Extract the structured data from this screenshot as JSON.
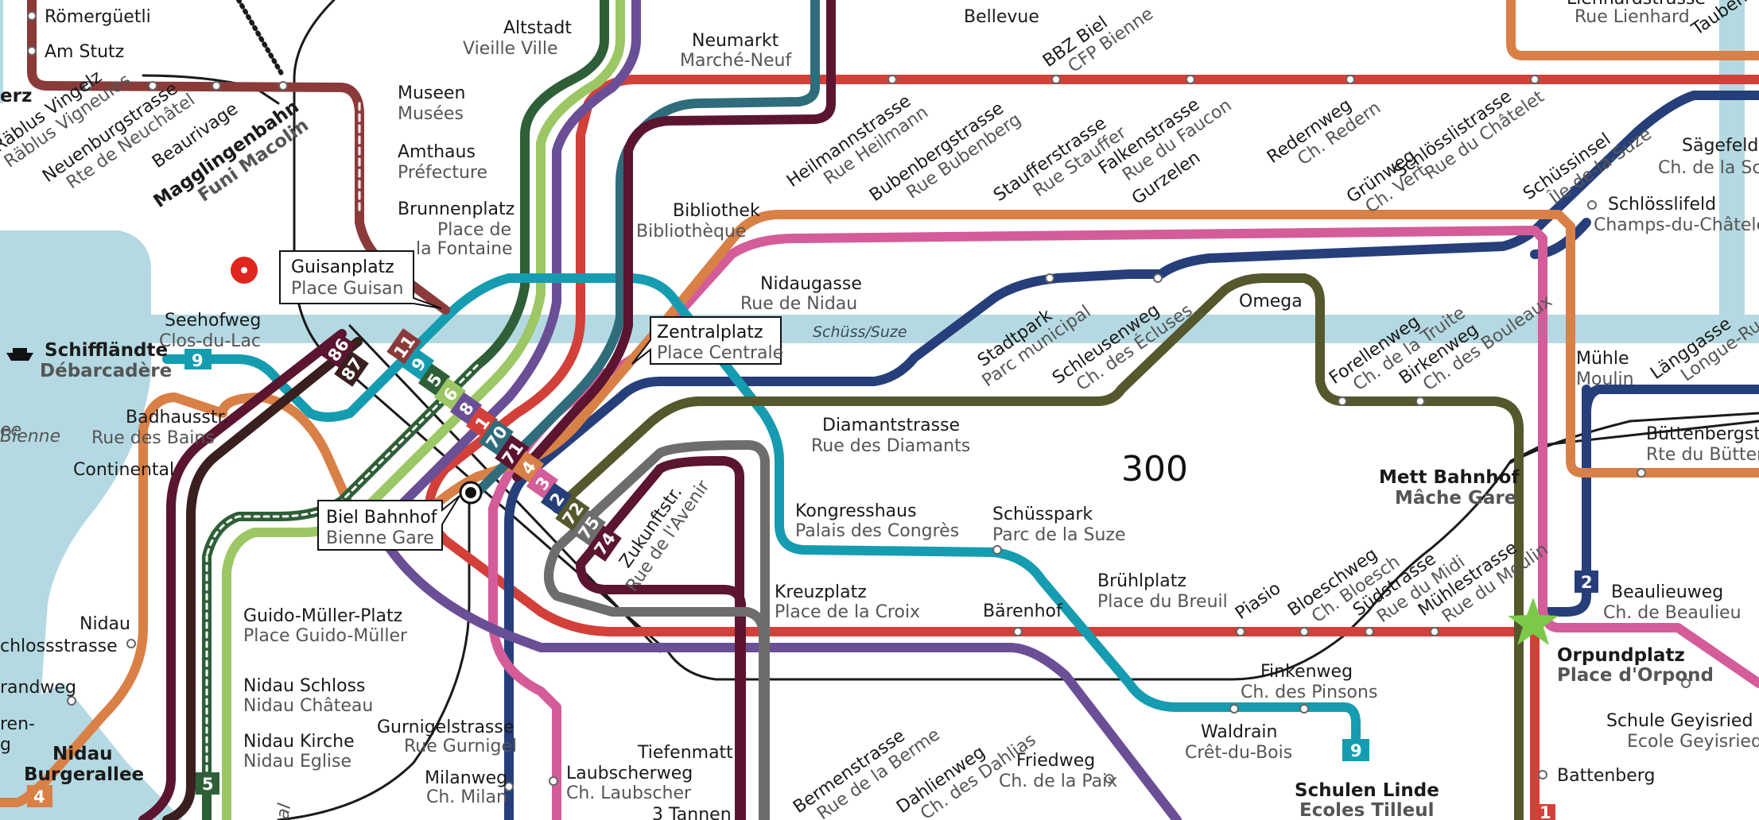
{
  "map": {
    "zone_number": "300",
    "river": "Schüss/Suze",
    "colors": {
      "water": "#b4d9e2",
      "line1": "#d3403a",
      "line2": "#263f7a",
      "line3": "#d45c99",
      "line4": "#d98046",
      "line5": "#2e5f37",
      "line6": "#9cc764",
      "line7": "#6a4f97",
      "line8": "#6a4f97",
      "line9": "#169cb0",
      "line11": "#8b3a3a",
      "line70": "#2f6c7c",
      "line71": "#5b1530",
      "line72": "#55572c",
      "line74": "#5b1530",
      "line75": "#6d6d6d",
      "line86": "#5b1530",
      "line87": "#3a1f1f",
      "funi": "#8b3a3a",
      "rail": "#1a1a1a",
      "star": "#7cc94a"
    },
    "line_badges": [
      "86",
      "87",
      "11",
      "9",
      "5",
      "6",
      "8",
      "1",
      "70",
      "71",
      "4",
      "3",
      "2",
      "72",
      "75",
      "74",
      "9",
      "2",
      "5",
      "4",
      "1"
    ],
    "callouts": {
      "guisanplatz": {
        "de": "Guisanplatz",
        "fr": "Place Guisan"
      },
      "zentralplatz": {
        "de": "Zentralplatz",
        "fr": "Place Centrale"
      },
      "biel_bahnhof": {
        "de": "Biel Bahnhof",
        "fr": "Bienne Gare"
      }
    },
    "stops": {
      "roemerguetli": "Römergüetli",
      "am_stutz": "Am Stutz",
      "erz": "erz",
      "museen": {
        "de": "Museen",
        "fr": "Musées"
      },
      "amthaus": {
        "de": "Amthaus",
        "fr": "Préfecture"
      },
      "brunnenplatz": {
        "de": "Brunnenplatz",
        "fr1": "Place de",
        "fr2": "la Fontaine"
      },
      "altstadt": {
        "de": "Altstadt",
        "fr": "Vieille Ville"
      },
      "neumarkt": {
        "de": "Neumarkt",
        "fr": "Marché-Neuf"
      },
      "bellevue": "Bellevue",
      "bbz_biel": {
        "de": "BBZ Biel",
        "fr": "CFP Bienne"
      },
      "lienhardstrasse": {
        "de": "Lienhardstrasse",
        "fr": "Rue Lienhard"
      },
      "taubenloch": "Taubenl",
      "raeblus": {
        "de": "Räblus Vingelz",
        "fr": "Räblus Vigneules"
      },
      "neuenburgstrasse": {
        "de": "Neuenburgstrasse",
        "fr": "Rte de Neuchâtel"
      },
      "beaurivage": "Beaurivage",
      "magglingenbahn": {
        "de": "Magglingenbahn",
        "fr": "Funi Macolin"
      },
      "heilmannstrasse": {
        "de": "Heilmannstrasse",
        "fr": "Rue Heilmann"
      },
      "bubenbergstrasse": {
        "de": "Bubenbergstrasse",
        "fr": "Rue Bubenberg"
      },
      "staufferstrasse": {
        "de": "Staufferstrasse",
        "fr": "Rue Stauffer"
      },
      "falkenstrasse": {
        "de": "Falkenstrasse",
        "fr": "Rue du Faucon"
      },
      "gurzelen": "Gurzelen",
      "redernweg": {
        "de": "Redernweg",
        "fr": "Ch. Redern"
      },
      "gruenweg": {
        "de": "Grünweg",
        "fr": "Ch. Vert"
      },
      "schloesslistrasse": {
        "de": "Schlösslistrasse",
        "fr": "Rue du Châtelet"
      },
      "schuessinsel": {
        "de": "Schüssinsel",
        "fr": "Île-de-la-Suze"
      },
      "saegefeld": {
        "de": "Sägefeldw",
        "fr": "Ch. de la Sci"
      },
      "schloesslifeld": {
        "de": "Schlösslifeld",
        "fr": "Champs-du-Châtelet"
      },
      "bibliothek": {
        "de": "Bibliothek",
        "fr": "Bibliothèque"
      },
      "nidaugasse": {
        "de": "Nidaugasse",
        "fr": "Rue de Nidau"
      },
      "seehofweg": {
        "de": "Seehofweg",
        "fr": "Clos-du-Lac"
      },
      "schifflaendte": {
        "de": "Schiffländte",
        "fr": "Débarcadère"
      },
      "stadtpark": {
        "de": "Stadtpark",
        "fr": "Parc municipal"
      },
      "schleusenweg": {
        "de": "Schleusenweg",
        "fr": "Ch. des Écluses"
      },
      "omega": "Omega",
      "forellenweg": {
        "de": "Forellenweg",
        "fr": "Ch. de la Truite"
      },
      "birkenweg": {
        "de": "Birkenweg",
        "fr": "Ch. des Bouleaux"
      },
      "muehle": {
        "de": "Mühle",
        "fr": "Moulin"
      },
      "laenggasse": {
        "de": "Länggasse",
        "fr": "Longue-Rue"
      },
      "buettenbergstrasse": {
        "de": "Büttenbergstra",
        "fr": "Rte du Büttenb"
      },
      "badhausstr": {
        "de": "Badhausstr.",
        "fr": "Rue des Bains"
      },
      "bienne_lake": "Bienne",
      "lake_ee": "ee",
      "continental": "Continental",
      "diamantstrasse": {
        "de": "Diamantstrasse",
        "fr": "Rue des Diamants"
      },
      "mett_bahnhof": {
        "de": "Mett Bahnhof",
        "fr": "Mâche Gare"
      },
      "kongresshaus": {
        "de": "Kongresshaus",
        "fr": "Palais des Congrès"
      },
      "schuesspark": {
        "de": "Schüsspark",
        "fr": "Parc de la Suze"
      },
      "zukunftstr": {
        "de": "Zukunftstr.",
        "fr": "Rue de l'Avenir"
      },
      "kreuzplatz": {
        "de": "Kreuzplatz",
        "fr": "Place de la Croix"
      },
      "baerenhof": "Bärenhof",
      "bruehlplatz": {
        "de": "Brühlplatz",
        "fr": "Place du Breuil"
      },
      "piasio": "Piasio",
      "bloeschweg": {
        "de": "Bloeschweg",
        "fr": "Ch. Bloesch"
      },
      "suedstrasse": {
        "de": "Südstrasse",
        "fr": "Rue du Midi"
      },
      "muehlestrasse": {
        "de": "Mühlestrasse",
        "fr": "Rue du Moulin"
      },
      "beaulieuweg": {
        "de": "Beaulieuweg",
        "fr": "Ch. de Beaulieu"
      },
      "orpundplatz": {
        "de": "Orpundplatz",
        "fr": "Place d'Orpond"
      },
      "nidau": "Nidau",
      "schlossstrasse": "chlossstrasse",
      "guido_mueller": {
        "de": "Guido-Müller-Platz",
        "fr": "Place Guido-Müller"
      },
      "strandweg": "randweg",
      "nidau_schloss": {
        "de": "Nidau Schloss",
        "fr": "Nidau Château"
      },
      "nidau_kirche": {
        "de": "Nidau Kirche",
        "fr": "Nidau Eglise"
      },
      "nidau_burgerallee": {
        "de1": "Nidau",
        "de2": "Burgerallee"
      },
      "ren": "ren-",
      "g": "g",
      "finkenweg": {
        "de": "Finkenweg",
        "fr": "Ch. des Pinsons"
      },
      "waldrain": {
        "de": "Waldrain",
        "fr": "Crêt-du-Bois"
      },
      "schule_geyisried": {
        "de": "Schule Geyisried",
        "fr": "Ecole Geyisried"
      },
      "battenberg": "Battenberg",
      "gurnigelstrasse": {
        "de": "Gurnigelstrasse",
        "fr": "Rue Gurnigel"
      },
      "tiefenmatt": "Tiefenmatt",
      "milanweg": {
        "de": "Milanweg",
        "fr": "Ch. Milan"
      },
      "laubscherweg": {
        "de": "Laubscherweg",
        "fr": "Ch. Laubscher"
      },
      "drei_tannen": "3 Tannen",
      "bermenstrasse": {
        "de": "Bermenstrasse",
        "fr": "Rue de la Berme"
      },
      "dahlienweg": {
        "de": "Dahlienweg",
        "fr": "Ch. des Dahlias"
      },
      "friedweg": {
        "de": "Friedweg",
        "fr": "Ch. de la Paix"
      },
      "schulen_linde": {
        "de": "Schulen Linde",
        "fr": "Ecoles Tilleul"
      },
      "al": "al"
    }
  }
}
